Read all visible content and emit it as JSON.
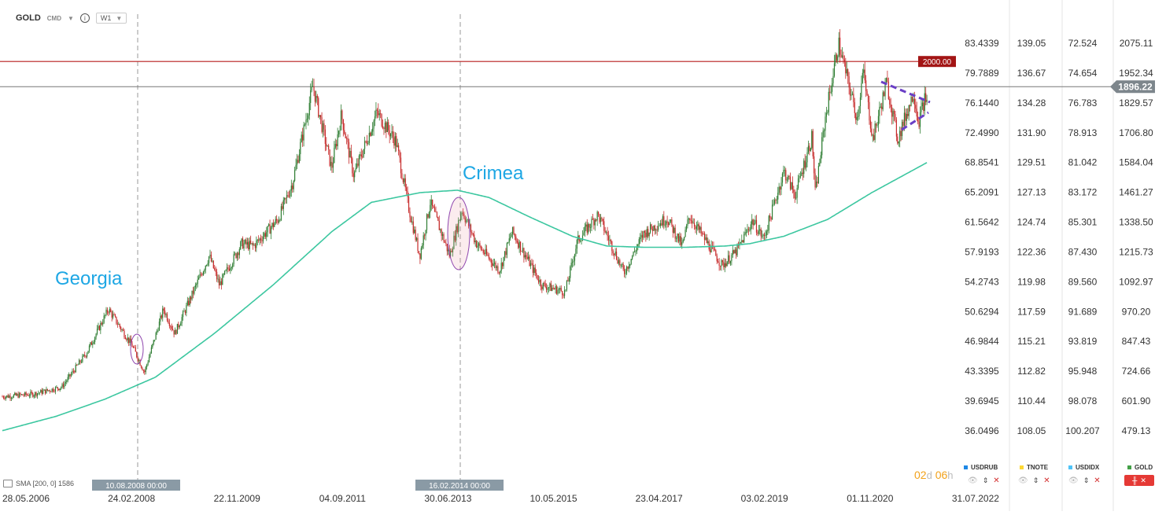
{
  "header": {
    "symbol": "GOLD",
    "symbol_type": "CMD",
    "timeframe": "W1"
  },
  "indicator": {
    "label": "SMA [200, 0] 1586"
  },
  "timer": {
    "days": "02",
    "days_unit": "d",
    "hours": "06",
    "hours_unit": "h"
  },
  "annotations": {
    "georgia": "Georgia",
    "crimea": "Crimea",
    "georgia_date": "10.08.2008 00:00",
    "crimea_date": "16.02.2014 00:00",
    "level_2000": "2000.00",
    "current_price": "1896.22"
  },
  "legend": [
    {
      "name": "USDRUB",
      "color": "#1e88e5"
    },
    {
      "name": "TNOTE",
      "color": "#fdd835"
    },
    {
      "name": "USDIDX",
      "color": "#4fc3f7"
    },
    {
      "name": "GOLD",
      "color": "#43a047"
    }
  ],
  "colors": {
    "up": "#2e7d32",
    "down": "#c62828",
    "sma": "#3cc7a0",
    "level_line": "#b71c1c",
    "price_line": "#777777",
    "annotation_text": "#1ea7e4",
    "ellipse": "#8e44ad",
    "triangle": "#6a3fc6"
  },
  "chart_data": {
    "type": "candlestick",
    "timeframe": "W1",
    "x_tick_labels": [
      "28.05.2006",
      "24.02.2008",
      "22.11.2009",
      "04.09.2011",
      "30.06.2013",
      "10.05.2015",
      "23.04.2017",
      "03.02.2019",
      "01.11.2020",
      "31.07.2022"
    ],
    "axes": [
      {
        "name": "USDRUB",
        "ticks": [
          "83.4339",
          "79.7889",
          "76.1440",
          "72.4990",
          "68.8541",
          "65.2091",
          "61.5642",
          "57.9193",
          "54.2743",
          "50.6294",
          "46.9844",
          "43.3395",
          "39.6945",
          "36.0496"
        ]
      },
      {
        "name": "TNOTE",
        "ticks": [
          "139.05",
          "136.67",
          "134.28",
          "131.90",
          "129.51",
          "127.13",
          "124.74",
          "122.36",
          "119.98",
          "117.59",
          "115.21",
          "112.82",
          "110.44",
          "108.05"
        ]
      },
      {
        "name": "USDIDX",
        "ticks": [
          "72.524",
          "74.654",
          "76.783",
          "78.913",
          "81.042",
          "83.172",
          "85.301",
          "87.430",
          "89.560",
          "91.689",
          "93.819",
          "95.948",
          "98.078",
          "100.207"
        ]
      },
      {
        "name": "GOLD",
        "ticks": [
          "2075.11",
          "1952.34",
          "1829.57",
          "1706.80",
          "1584.04",
          "1461.27",
          "1338.50",
          "1215.73",
          "1092.97",
          "970.20",
          "847.43",
          "724.66",
          "601.90",
          "479.13"
        ]
      }
    ],
    "gold_range": [
      479.13,
      2075.11
    ],
    "date_range": [
      "28.05.2006",
      "31.07.2022"
    ],
    "gold_anchors": [
      [
        "2006-05-28",
        620
      ],
      [
        "2006-12-01",
        630
      ],
      [
        "2007-06-01",
        660
      ],
      [
        "2007-11-01",
        800
      ],
      [
        "2008-03-15",
        980
      ],
      [
        "2008-08-10",
        830
      ],
      [
        "2008-10-25",
        720
      ],
      [
        "2009-02-20",
        980
      ],
      [
        "2009-05-01",
        880
      ],
      [
        "2009-12-01",
        1200
      ],
      [
        "2010-02-01",
        1080
      ],
      [
        "2010-06-20",
        1250
      ],
      [
        "2010-09-01",
        1240
      ],
      [
        "2011-02-01",
        1350
      ],
      [
        "2011-05-01",
        1500
      ],
      [
        "2011-09-05",
        1900
      ],
      [
        "2011-12-29",
        1560
      ],
      [
        "2012-02-28",
        1780
      ],
      [
        "2012-05-15",
        1530
      ],
      [
        "2012-10-05",
        1790
      ],
      [
        "2013-02-01",
        1670
      ],
      [
        "2013-04-20",
        1400
      ],
      [
        "2013-06-28",
        1200
      ],
      [
        "2013-09-01",
        1420
      ],
      [
        "2013-12-31",
        1200
      ],
      [
        "2014-03-15",
        1390
      ],
      [
        "2014-06-15",
        1250
      ],
      [
        "2014-11-05",
        1140
      ],
      [
        "2015-01-22",
        1300
      ],
      [
        "2015-07-24",
        1080
      ],
      [
        "2015-12-17",
        1050
      ],
      [
        "2016-03-01",
        1260
      ],
      [
        "2016-07-06",
        1370
      ],
      [
        "2016-12-15",
        1130
      ],
      [
        "2017-04-15",
        1290
      ],
      [
        "2017-09-08",
        1355
      ],
      [
        "2017-12-12",
        1240
      ],
      [
        "2018-01-25",
        1365
      ],
      [
        "2018-08-16",
        1160
      ],
      [
        "2018-11-15",
        1220
      ],
      [
        "2019-02-20",
        1345
      ],
      [
        "2019-05-01",
        1270
      ],
      [
        "2019-09-04",
        1550
      ],
      [
        "2019-11-12",
        1450
      ],
      [
        "2020-02-24",
        1690
      ],
      [
        "2020-03-16",
        1450
      ],
      [
        "2020-05-15",
        1760
      ],
      [
        "2020-08-07",
        2075
      ],
      [
        "2020-11-30",
        1765
      ],
      [
        "2021-01-06",
        1960
      ],
      [
        "2021-03-08",
        1680
      ],
      [
        "2021-06-01",
        1915
      ],
      [
        "2021-08-09",
        1680
      ],
      [
        "2021-11-16",
        1875
      ],
      [
        "2021-12-15",
        1750
      ],
      [
        "2022-01-25",
        1850
      ],
      [
        "2022-01-28",
        1800
      ],
      [
        "2022-02-12",
        1896.22
      ]
    ],
    "sma_anchors": [
      [
        "2006-05-28",
        480
      ],
      [
        "2007-05-01",
        540
      ],
      [
        "2008-02-24",
        610
      ],
      [
        "2009-01-01",
        700
      ],
      [
        "2010-01-01",
        880
      ],
      [
        "2011-01-01",
        1080
      ],
      [
        "2012-01-01",
        1300
      ],
      [
        "2012-09-01",
        1420
      ],
      [
        "2013-06-30",
        1460
      ],
      [
        "2014-02-16",
        1470
      ],
      [
        "2014-09-01",
        1440
      ],
      [
        "2015-05-10",
        1360
      ],
      [
        "2016-02-01",
        1280
      ],
      [
        "2016-09-01",
        1240
      ],
      [
        "2017-04-23",
        1235
      ],
      [
        "2018-01-01",
        1235
      ],
      [
        "2018-09-01",
        1240
      ],
      [
        "2019-02-03",
        1250
      ],
      [
        "2019-09-01",
        1280
      ],
      [
        "2020-06-01",
        1350
      ],
      [
        "2021-03-01",
        1460
      ],
      [
        "2022-02-12",
        1586
      ]
    ],
    "horizontal_levels": [
      2000,
      1896.22
    ],
    "event_lines": [
      {
        "label": "Georgia",
        "date": "10.08.2008 00:00"
      },
      {
        "label": "Crimea",
        "date": "16.02.2014 00:00"
      }
    ]
  }
}
